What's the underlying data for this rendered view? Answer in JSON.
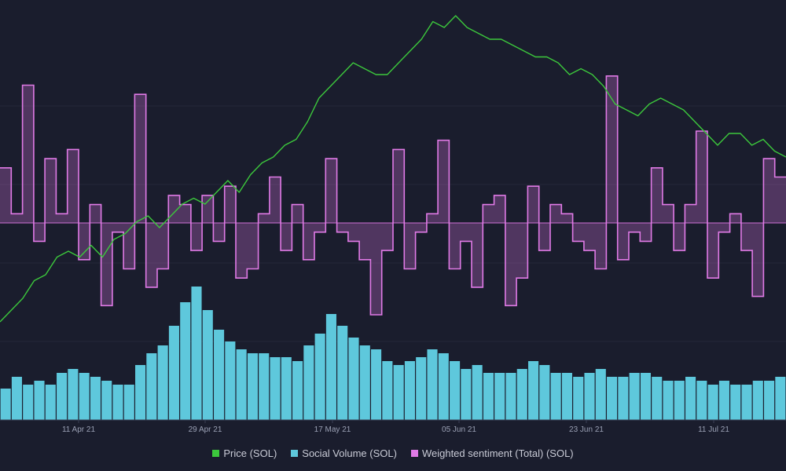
{
  "chart_data": {
    "type": "line+bar",
    "x_ticks": [
      "11 Apr 21",
      "29 Apr 21",
      "17 May 21",
      "05 Jun 21",
      "23 Jun 21",
      "11 Jul 21"
    ],
    "legend": [
      {
        "name": "Price (SOL)",
        "color": "#3cc83c"
      },
      {
        "name": "Social Volume (SOL)",
        "color": "#5ec8dc"
      },
      {
        "name": "Weighted sentiment (Total) (SOL)",
        "color": "#e07ae6"
      }
    ],
    "series": [
      {
        "name": "Price (SOL)",
        "type": "line",
        "color": "#3cc83c",
        "axis": "left",
        "values": [
          20,
          22,
          24,
          27,
          28,
          31,
          32,
          31,
          33,
          31,
          34,
          35,
          37,
          38,
          36,
          38,
          40,
          41,
          40,
          42,
          44,
          42,
          45,
          47,
          48,
          50,
          51,
          54,
          58,
          60,
          62,
          64,
          63,
          62,
          62,
          64,
          66,
          68,
          71,
          70,
          72,
          70,
          69,
          68,
          68,
          67,
          66,
          65,
          65,
          64,
          62,
          63,
          62,
          60,
          57,
          56,
          55,
          57,
          58,
          57,
          56,
          54,
          52,
          50,
          52,
          52,
          50,
          51,
          49,
          48
        ]
      },
      {
        "name": "Social Volume (SOL)",
        "type": "bar",
        "color": "#5ec8dc",
        "axis": "volume",
        "values": [
          8,
          11,
          9,
          10,
          9,
          12,
          13,
          12,
          11,
          10,
          9,
          9,
          14,
          17,
          19,
          24,
          30,
          34,
          28,
          23,
          20,
          18,
          17,
          17,
          16,
          16,
          15,
          19,
          22,
          27,
          24,
          21,
          19,
          18,
          15,
          14,
          15,
          16,
          18,
          17,
          15,
          13,
          14,
          12,
          12,
          12,
          13,
          15,
          14,
          12,
          12,
          11,
          12,
          13,
          11,
          11,
          12,
          12,
          11,
          10,
          10,
          11,
          10,
          9,
          10,
          9,
          9,
          10,
          10,
          11
        ]
      },
      {
        "name": "Weighted sentiment (Total) (SOL)",
        "type": "step",
        "color": "#e07ae6",
        "axis": "sentiment",
        "baseline": 0,
        "values": [
          0.6,
          0.1,
          1.5,
          -0.2,
          0.7,
          0.1,
          0.8,
          -0.4,
          0.2,
          -0.9,
          -0.1,
          -0.5,
          1.4,
          -0.7,
          -0.5,
          0.3,
          0.2,
          -0.3,
          0.3,
          -0.2,
          0.4,
          -0.6,
          -0.5,
          0.1,
          0.5,
          -0.3,
          0.2,
          -0.4,
          -0.1,
          0.7,
          -0.1,
          -0.2,
          -0.4,
          -1.0,
          -0.3,
          0.8,
          -0.5,
          -0.1,
          0.1,
          0.9,
          -0.5,
          -0.2,
          -0.7,
          0.2,
          0.3,
          -0.9,
          -0.6,
          0.4,
          -0.3,
          0.2,
          0.1,
          -0.2,
          -0.3,
          -0.5,
          1.6,
          -0.4,
          -0.1,
          -0.2,
          0.6,
          0.2,
          -0.3,
          0.2,
          1.0,
          -0.6,
          -0.1,
          0.1,
          -0.3,
          -0.8,
          0.7,
          0.5
        ]
      }
    ],
    "grid": true
  }
}
